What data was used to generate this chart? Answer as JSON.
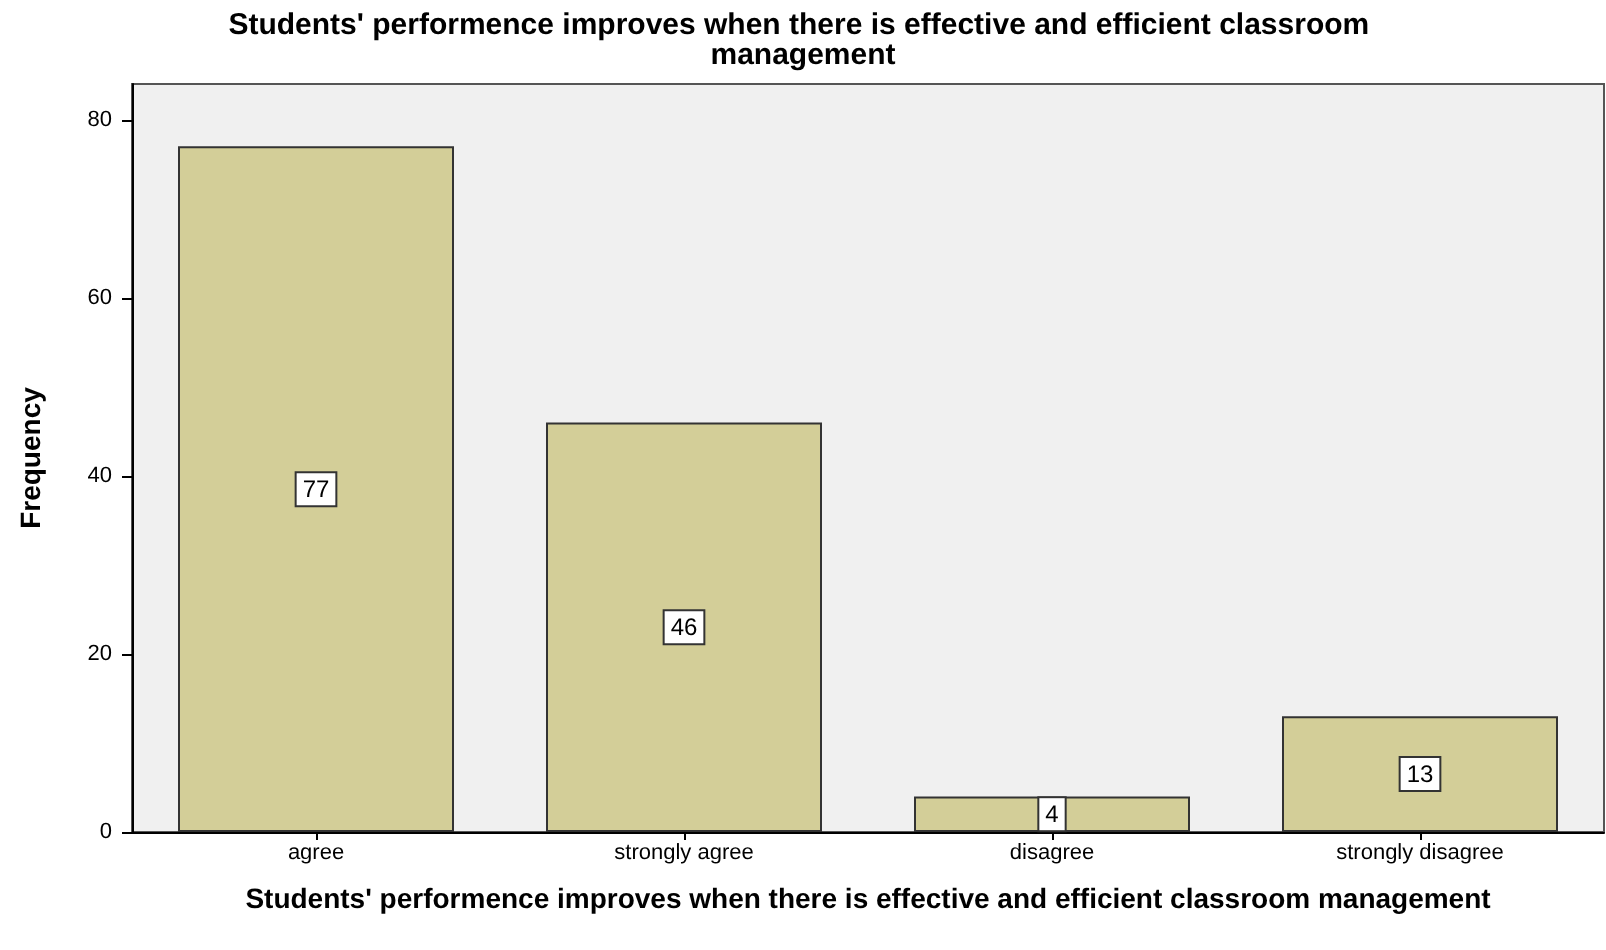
{
  "chart_data": {
    "type": "bar",
    "title": "Students' performence improves when there is effective and efficient classroom management",
    "xlabel": "Students' performence improves when there is effective and efficient classroom management",
    "ylabel": "Frequency",
    "categories": [
      "agree",
      "strongly agree",
      "disagree",
      "strongly disagree"
    ],
    "values": [
      77,
      46,
      4,
      13
    ],
    "color": "#d3ce98",
    "ylim": [
      0,
      84
    ],
    "yticks": [
      0,
      20,
      40,
      60,
      80
    ],
    "grid": false,
    "data_labels": true
  }
}
